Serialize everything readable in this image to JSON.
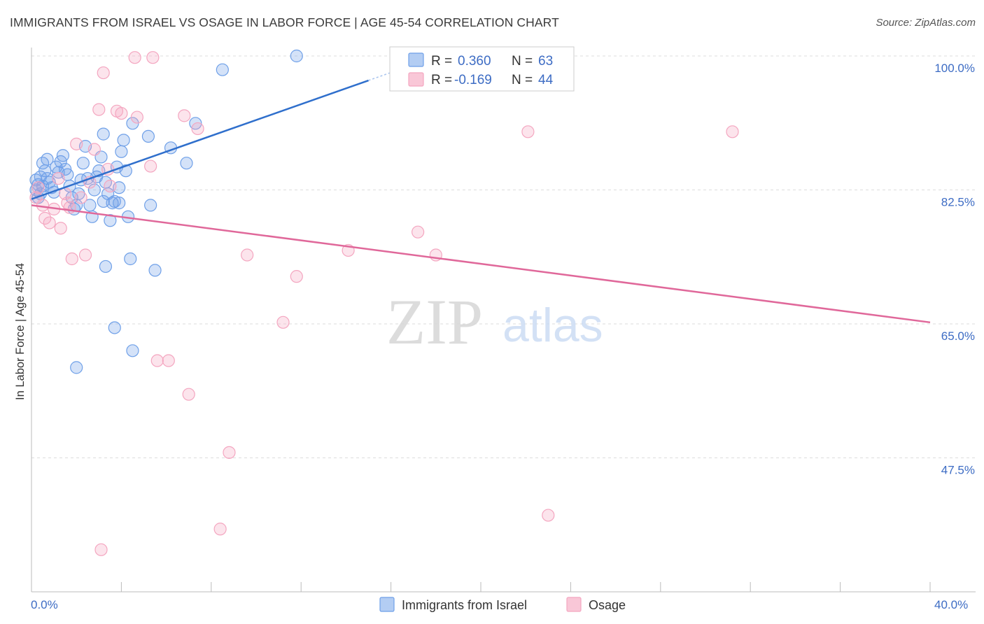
{
  "chart_data": {
    "type": "scatter",
    "title": "IMMIGRANTS FROM ISRAEL VS OSAGE IN LABOR FORCE | AGE 45-54 CORRELATION CHART",
    "source": "Source: ZipAtlas.com",
    "ylabel": "In Labor Force | Age 45-54",
    "xlabel": "",
    "xlim": [
      0,
      40
    ],
    "ylim": [
      31,
      101.5
    ],
    "x_tick_labels": [
      "0.0%",
      "40.0%"
    ],
    "y_ticks": [
      {
        "value": 100.0,
        "label": "100.0%"
      },
      {
        "value": 82.5,
        "label": "82.5%"
      },
      {
        "value": 65.0,
        "label": "65.0%"
      },
      {
        "value": 47.5,
        "label": "47.5%"
      }
    ],
    "watermark": {
      "zip": "ZIP",
      "atlas": "atlas"
    },
    "legend": {
      "entries": [
        {
          "r_label": "R = ",
          "r_value": "0.360",
          "n_label": "N = ",
          "n_value": "63"
        },
        {
          "r_label": "R = ",
          "r_value": "-0.169",
          "n_label": "N = ",
          "n_value": "44"
        }
      ]
    },
    "series": [
      {
        "name": "Immigrants from Israel",
        "color": "#6fa0e8",
        "line_color": "#2f6fcc",
        "trend": {
          "x0": 0,
          "y0": 81.3,
          "x1": 15.0,
          "y1": 96.8,
          "dash_to_x": 17.5,
          "dash_to_y": 99.4
        },
        "points": [
          [
            0.2,
            83.8
          ],
          [
            0.3,
            83.2
          ],
          [
            0.2,
            82.5
          ],
          [
            0.4,
            82.0
          ],
          [
            0.3,
            81.5
          ],
          [
            0.5,
            83.0
          ],
          [
            0.4,
            84.2
          ],
          [
            0.6,
            85.0
          ],
          [
            0.7,
            84.0
          ],
          [
            0.8,
            83.5
          ],
          [
            0.9,
            82.8
          ],
          [
            1.0,
            82.2
          ],
          [
            0.5,
            86.0
          ],
          [
            0.7,
            86.5
          ],
          [
            1.1,
            85.5
          ],
          [
            1.2,
            84.8
          ],
          [
            1.3,
            86.2
          ],
          [
            1.4,
            87.0
          ],
          [
            1.5,
            85.2
          ],
          [
            1.6,
            84.5
          ],
          [
            1.7,
            83.0
          ],
          [
            1.8,
            81.5
          ],
          [
            1.9,
            80.0
          ],
          [
            2.0,
            80.5
          ],
          [
            2.1,
            82.0
          ],
          [
            2.2,
            83.8
          ],
          [
            2.3,
            86.0
          ],
          [
            2.4,
            88.2
          ],
          [
            2.5,
            84.0
          ],
          [
            2.6,
            80.5
          ],
          [
            2.7,
            79.0
          ],
          [
            2.8,
            82.5
          ],
          [
            2.9,
            84.2
          ],
          [
            3.0,
            85.0
          ],
          [
            3.1,
            86.8
          ],
          [
            3.2,
            81.0
          ],
          [
            3.3,
            83.5
          ],
          [
            3.4,
            82.0
          ],
          [
            3.5,
            78.5
          ],
          [
            3.6,
            80.8
          ],
          [
            3.7,
            81.0
          ],
          [
            3.8,
            85.5
          ],
          [
            3.9,
            82.8
          ],
          [
            4.0,
            87.5
          ],
          [
            4.1,
            89.0
          ],
          [
            4.2,
            85.0
          ],
          [
            4.3,
            79.0
          ],
          [
            4.4,
            73.5
          ],
          [
            4.5,
            61.5
          ],
          [
            3.7,
            64.5
          ],
          [
            4.5,
            91.2
          ],
          [
            3.2,
            89.8
          ],
          [
            3.3,
            72.5
          ],
          [
            3.9,
            80.8
          ],
          [
            5.2,
            89.5
          ],
          [
            6.2,
            88.0
          ],
          [
            6.9,
            86.0
          ],
          [
            5.3,
            80.5
          ],
          [
            5.5,
            72.0
          ],
          [
            7.3,
            91.2
          ],
          [
            8.5,
            98.2
          ],
          [
            11.8,
            100.0
          ],
          [
            2.0,
            59.3
          ]
        ]
      },
      {
        "name": "Osage",
        "color": "#f4a6c0",
        "line_color": "#e0689a",
        "trend": {
          "x0": 0,
          "y0": 80.5,
          "x1": 40,
          "y1": 65.2
        },
        "points": [
          [
            0.2,
            81.5
          ],
          [
            0.3,
            82.8
          ],
          [
            0.5,
            80.5
          ],
          [
            0.6,
            78.8
          ],
          [
            0.8,
            78.2
          ],
          [
            1.0,
            80.0
          ],
          [
            1.2,
            84.0
          ],
          [
            1.3,
            77.5
          ],
          [
            1.5,
            82.0
          ],
          [
            1.7,
            80.2
          ],
          [
            1.8,
            73.5
          ],
          [
            2.0,
            88.5
          ],
          [
            2.2,
            81.5
          ],
          [
            2.4,
            74.0
          ],
          [
            2.6,
            83.5
          ],
          [
            2.8,
            87.8
          ],
          [
            3.0,
            93.0
          ],
          [
            3.2,
            97.8
          ],
          [
            3.4,
            85.2
          ],
          [
            3.8,
            92.8
          ],
          [
            4.0,
            92.5
          ],
          [
            4.6,
            99.8
          ],
          [
            4.7,
            92.0
          ],
          [
            5.4,
            99.8
          ],
          [
            5.3,
            85.6
          ],
          [
            5.6,
            60.2
          ],
          [
            6.1,
            60.2
          ],
          [
            6.8,
            92.2
          ],
          [
            7.0,
            55.8
          ],
          [
            7.4,
            90.5
          ],
          [
            8.4,
            38.2
          ],
          [
            8.8,
            48.2
          ],
          [
            9.6,
            74.0
          ],
          [
            11.2,
            65.2
          ],
          [
            11.8,
            71.2
          ],
          [
            14.1,
            74.6
          ],
          [
            17.2,
            77.0
          ],
          [
            18.0,
            74.0
          ],
          [
            22.1,
            90.1
          ],
          [
            23.0,
            40.0
          ],
          [
            31.2,
            90.1
          ],
          [
            3.1,
            35.5
          ],
          [
            1.6,
            80.8
          ],
          [
            3.5,
            83.0
          ]
        ]
      }
    ]
  }
}
